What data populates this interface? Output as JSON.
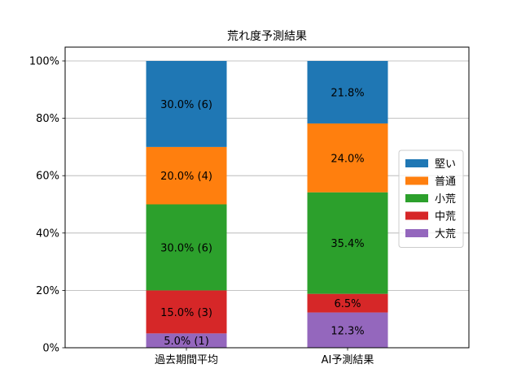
{
  "chart_data": {
    "type": "bar",
    "stacked": true,
    "title": "荒れ度予測結果",
    "xlabel": "",
    "ylabel": "",
    "categories": [
      "過去期間平均",
      "AI予測結果"
    ],
    "ylim": [
      0,
      100
    ],
    "y_ticks": [
      0,
      20,
      40,
      60,
      80,
      100
    ],
    "y_tick_labels": [
      "0%",
      "20%",
      "40%",
      "60%",
      "80%",
      "100%"
    ],
    "grid": "horizontal",
    "legend_position": "center-right",
    "series": [
      {
        "name": "大荒",
        "color": "#9467bd",
        "values": [
          5.0,
          12.3
        ],
        "labels": [
          "5.0% (1)",
          "12.3%"
        ]
      },
      {
        "name": "中荒",
        "color": "#d62728",
        "values": [
          15.0,
          6.5
        ],
        "labels": [
          "15.0% (3)",
          "6.5%"
        ]
      },
      {
        "name": "小荒",
        "color": "#2ca02c",
        "values": [
          30.0,
          35.4
        ],
        "labels": [
          "30.0% (6)",
          "35.4%"
        ]
      },
      {
        "name": "普通",
        "color": "#ff7f0e",
        "values": [
          20.0,
          24.0
        ],
        "labels": [
          "20.0% (4)",
          "24.0%"
        ]
      },
      {
        "name": "堅い",
        "color": "#1f77b4",
        "values": [
          30.0,
          21.8
        ],
        "labels": [
          "30.0% (6)",
          "21.8%"
        ]
      }
    ],
    "legend_order": [
      "堅い",
      "普通",
      "小荒",
      "中荒",
      "大荒"
    ]
  }
}
